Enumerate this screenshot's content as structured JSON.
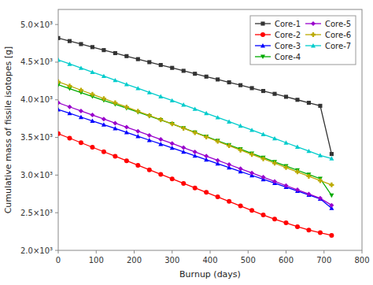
{
  "chart_data": {
    "type": "line",
    "x_label": "Burnup (days)",
    "y_label": "Cumulative mass of fissile isotopes [g]",
    "xlim": [
      0,
      800
    ],
    "ylim": [
      2000,
      5200
    ],
    "xticks": [
      0,
      100,
      200,
      300,
      400,
      500,
      600,
      700,
      800
    ],
    "yticks": [
      {
        "value": 2000,
        "label": "2.0×10³"
      },
      {
        "value": 2500,
        "label": "2.5×10³"
      },
      {
        "value": 3000,
        "label": "3.0×10³"
      },
      {
        "value": 3500,
        "label": "3.5×10³"
      },
      {
        "value": 4000,
        "label": "4.0×10³"
      },
      {
        "value": 4500,
        "label": "4.5×10³"
      },
      {
        "value": 5000,
        "label": "5.0×10³"
      }
    ],
    "grid": false,
    "legend": "upper right",
    "x": [
      0,
      30,
      60,
      90,
      120,
      150,
      180,
      210,
      240,
      270,
      300,
      330,
      360,
      390,
      420,
      450,
      480,
      510,
      540,
      570,
      600,
      630,
      660,
      690,
      720
    ],
    "series": [
      {
        "name": "Core-1",
        "color": "#333333",
        "marker": "square",
        "values": [
          4820,
          4780,
          4740,
          4700,
          4660,
          4620,
          4580,
          4540,
          4500,
          4462,
          4424,
          4385,
          4346,
          4308,
          4270,
          4232,
          4194,
          4155,
          4117,
          4079,
          4040,
          4000,
          3960,
          3920,
          3280
        ]
      },
      {
        "name": "Core-2",
        "color": "#ff0000",
        "marker": "circle",
        "values": [
          3550,
          3490,
          3430,
          3370,
          3310,
          3250,
          3190,
          3130,
          3070,
          3010,
          2950,
          2890,
          2830,
          2770,
          2710,
          2650,
          2590,
          2530,
          2470,
          2415,
          2365,
          2315,
          2270,
          2235,
          2200
        ]
      },
      {
        "name": "Core-3",
        "color": "#0000ff",
        "marker": "triangle-up",
        "values": [
          3870,
          3820,
          3770,
          3720,
          3670,
          3620,
          3568,
          3516,
          3464,
          3412,
          3360,
          3308,
          3256,
          3204,
          3152,
          3100,
          3048,
          2996,
          2944,
          2892,
          2840,
          2788,
          2736,
          2684,
          2560
        ]
      },
      {
        "name": "Core-4",
        "color": "#00aa00",
        "marker": "triangle-down",
        "values": [
          4200,
          4148,
          4096,
          4044,
          3992,
          3940,
          3888,
          3836,
          3784,
          3732,
          3680,
          3624,
          3568,
          3512,
          3456,
          3400,
          3344,
          3288,
          3232,
          3176,
          3120,
          3064,
          3008,
          2952,
          2730
        ]
      },
      {
        "name": "Core-5",
        "color": "#9900cc",
        "marker": "diamond",
        "values": [
          3960,
          3906,
          3852,
          3798,
          3744,
          3690,
          3636,
          3582,
          3528,
          3474,
          3420,
          3364,
          3308,
          3252,
          3196,
          3140,
          3084,
          3028,
          2972,
          2916,
          2860,
          2804,
          2748,
          2692,
          2600
        ]
      },
      {
        "name": "Core-6",
        "color": "#bbaa00",
        "marker": "plus",
        "values": [
          4240,
          4184,
          4128,
          4072,
          4016,
          3960,
          3904,
          3848,
          3792,
          3736,
          3680,
          3622,
          3564,
          3506,
          3448,
          3390,
          3332,
          3274,
          3216,
          3158,
          3100,
          3042,
          2984,
          2926,
          2870
        ]
      },
      {
        "name": "Core-7",
        "color": "#00cccc",
        "marker": "triangle-up",
        "values": [
          4530,
          4476,
          4422,
          4368,
          4314,
          4260,
          4206,
          4152,
          4098,
          4044,
          3990,
          3934,
          3878,
          3822,
          3766,
          3710,
          3654,
          3598,
          3542,
          3486,
          3430,
          3374,
          3318,
          3262,
          3220
        ]
      }
    ]
  }
}
